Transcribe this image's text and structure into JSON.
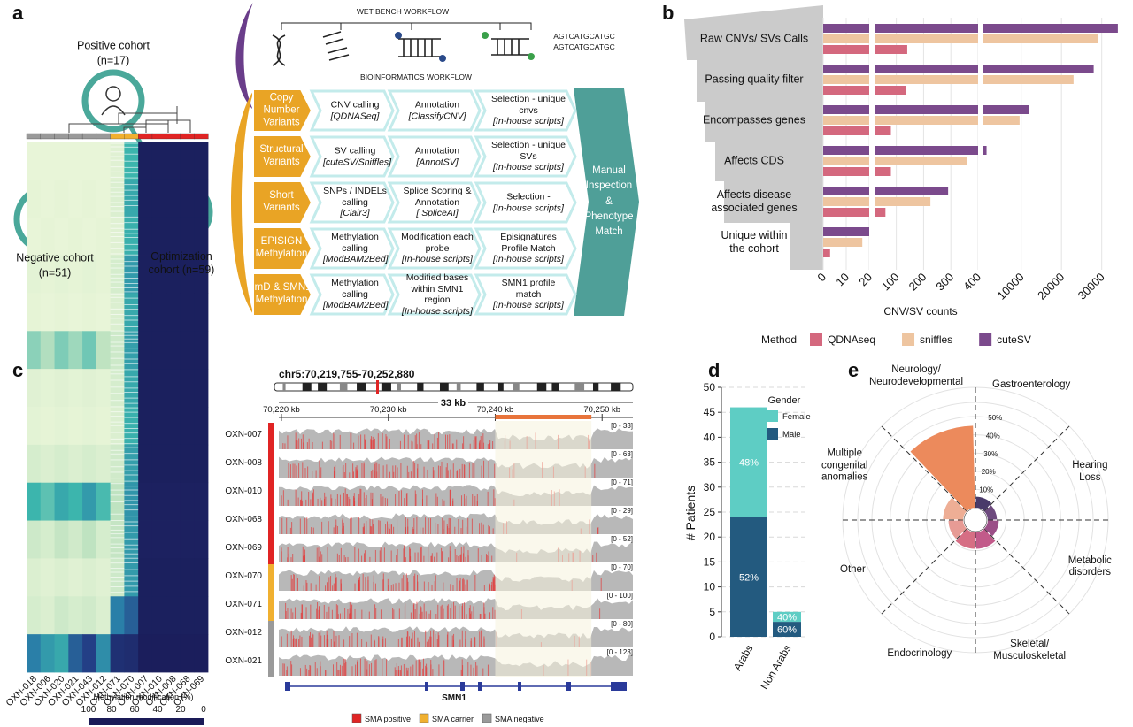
{
  "panel_labels": [
    "a",
    "b",
    "c",
    "d",
    "e"
  ],
  "workflow": {
    "cohorts": [
      {
        "name": "Positive cohort",
        "n": "(n=17)"
      },
      {
        "name": "Optimization cohort (n=59)"
      },
      {
        "name": "Negative cohort",
        "n": "(n=51)"
      }
    ],
    "wet_bench_title": "WET BENCH WORKFLOW",
    "sequences": [
      "AGTCATGCATGC",
      "AGTCATGCATGC"
    ],
    "bioinformatics_title": "BIOINFORMATICS WORKFLOW",
    "rows": [
      {
        "label": "Copy Number Variants",
        "steps": [
          {
            "text": "CNV calling",
            "tool": "[QDNASeq]"
          },
          {
            "text": "Annotation",
            "tool": "[ClassifyCNV]"
          },
          {
            "text": "Selection - unique cnvs",
            "tool": "[In-house scripts]"
          }
        ]
      },
      {
        "label": "Structural Variants",
        "steps": [
          {
            "text": "SV calling",
            "tool": "[cuteSV/Sniffles]"
          },
          {
            "text": "Annotation",
            "tool": "[AnnotSV]"
          },
          {
            "text": "Selection - unique SVs",
            "tool": "[In-house scripts]"
          }
        ]
      },
      {
        "label": "Short Variants",
        "steps": [
          {
            "text": "SNPs / INDELs calling",
            "tool": "[Clair3]"
          },
          {
            "text": "Splice Scoring & Annotation",
            "tool": "[ SpliceAI]"
          },
          {
            "text": "Selection -",
            "tool": "[In-house scripts]"
          }
        ]
      },
      {
        "label": "EPISIGN Methylation",
        "steps": [
          {
            "text": "Methylation calling",
            "tool": "[ModBAM2Bed]"
          },
          {
            "text": "Modification each probe",
            "tool": "[In-house scripts]"
          },
          {
            "text": "Episignatures Profile Match",
            "tool": "[In-house scripts]"
          }
        ]
      },
      {
        "label": "ImD & SMN1 Methylation",
        "steps": [
          {
            "text": "Methylation calling",
            "tool": "[ModBAM2Bed]"
          },
          {
            "text": "Modified bases within SMN1 region",
            "tool": "[In-house scripts]"
          },
          {
            "text": "SMN1 profile match",
            "tool": "[In-house scripts]"
          }
        ]
      }
    ],
    "final": "Manual Inspection & Phenotype Match"
  },
  "chart_data": [
    {
      "type": "broken_hbar",
      "categories": [
        "Raw CNVs/ SVs Calls",
        "Passing quality filter",
        "Encompasses genes",
        "Affects CDS",
        "Affects disease associated genes",
        "Unique within the cohort"
      ],
      "series": [
        {
          "name": "QDNAseq",
          "color": "#d4687e",
          "values": [
            140,
            135,
            80,
            80,
            60,
            3
          ]
        },
        {
          "name": "sniffles",
          "color": "#eec5a0",
          "values": [
            29000,
            23000,
            9600,
            360,
            225,
            17
          ]
        },
        {
          "name": "cuteSV",
          "color": "#7b4a8c",
          "values": [
            34000,
            28000,
            12000,
            1400,
            290,
            20
          ]
        }
      ],
      "xlabel": "CNV/SV counts",
      "legend_title": "Method",
      "xlim": [
        0,
        36000
      ],
      "x_breaks": [
        20,
        400
      ],
      "xticks": [
        0,
        10,
        20,
        100,
        200,
        300,
        400,
        10000,
        20000,
        30000
      ],
      "grid": true
    },
    {
      "type": "stacked_bar",
      "categories": [
        "Arabs",
        "Non Arabs"
      ],
      "series": [
        {
          "name": "Male",
          "color": "#235a7f",
          "values": [
            24,
            3
          ],
          "percent_labels": [
            "52%",
            "60%"
          ]
        },
        {
          "name": "Female",
          "color": "#5ecdc4",
          "values": [
            22,
            2
          ],
          "percent_labels": [
            "48%",
            "40%"
          ]
        }
      ],
      "ylabel": "# Patients",
      "legend_title": "Gender",
      "ylim": [
        0,
        50
      ],
      "yticks": [
        0,
        5,
        10,
        15,
        20,
        25,
        30,
        35,
        40,
        45,
        50
      ],
      "grid": true
    },
    {
      "type": "radial_bar",
      "categories": [
        "Gastroenterology",
        "Hearing Loss",
        "Metabolic disorders",
        "Skeletal/ Musculoskeletal",
        "Endocrinology",
        "Other",
        "Multiple congenital anomalies",
        "Neurology/ Neurodevelopmental"
      ],
      "values": [
        6,
        5,
        6,
        9,
        9,
        8,
        11,
        45
      ],
      "colors": [
        "#4a3a6a",
        "#6d4a7e",
        "#9b4f87",
        "#c25a8a",
        "#d66e84",
        "#e79b95",
        "#eeae95",
        "#ec8a5c"
      ],
      "rlim": [
        0,
        50
      ],
      "rticks": [
        {
          "value": 10,
          "label": "10%"
        },
        {
          "value": 20,
          "label": "20%"
        },
        {
          "value": 30,
          "label": "30%"
        },
        {
          "value": 40,
          "label": "40%"
        },
        {
          "value": 50,
          "label": "50%"
        }
      ]
    }
  ],
  "groups": [
    {
      "name": "SMA positive",
      "color": "#e02424"
    },
    {
      "name": "SMA carrier",
      "color": "#f0b030"
    },
    {
      "name": "SMA negative",
      "color": "#9a9a9a"
    }
  ],
  "heatmap": {
    "samples": [
      "OXN-018",
      "OXN-006",
      "OXN-020",
      "OXN-021",
      "OXN-043",
      "OXN-012",
      "OXN-071",
      "OXN-070",
      "OXN-007",
      "OXN-010",
      "OXN-008",
      "OXN-068",
      "OXN-069"
    ],
    "sample_colors": [
      "#9a9a9a",
      "#9a9a9a",
      "#9a9a9a",
      "#9a9a9a",
      "#9a9a9a",
      "#9a9a9a",
      "#f0b030",
      "#f0b030",
      "#e02424",
      "#e02424",
      "#e02424",
      "#e02424",
      "#e02424"
    ],
    "colorbar_label": "Methylation modification (%)",
    "colorbar_ticks": [
      100,
      80,
      60,
      40,
      20,
      0
    ],
    "values": [
      [
        95,
        95,
        95,
        95,
        95,
        95,
        92,
        60,
        3,
        3,
        3,
        3,
        3
      ],
      [
        94,
        95,
        94,
        95,
        94,
        95,
        90,
        55,
        3,
        3,
        3,
        3,
        3
      ],
      [
        95,
        94,
        95,
        94,
        95,
        94,
        92,
        58,
        3,
        3,
        3,
        3,
        3
      ],
      [
        93,
        94,
        93,
        94,
        93,
        94,
        88,
        50,
        3,
        3,
        3,
        3,
        3
      ],
      [
        94,
        95,
        94,
        95,
        94,
        95,
        90,
        55,
        3,
        3,
        3,
        3,
        3
      ],
      [
        72,
        78,
        70,
        75,
        68,
        80,
        85,
        52,
        3,
        3,
        3,
        3,
        3
      ],
      [
        92,
        93,
        92,
        93,
        92,
        93,
        88,
        55,
        3,
        3,
        3,
        3,
        3
      ],
      [
        93,
        94,
        93,
        94,
        93,
        94,
        90,
        58,
        3,
        3,
        3,
        3,
        3
      ],
      [
        88,
        90,
        88,
        90,
        88,
        90,
        86,
        52,
        3,
        3,
        3,
        3,
        3
      ],
      [
        60,
        65,
        55,
        60,
        50,
        62,
        80,
        48,
        4,
        4,
        4,
        4,
        4
      ],
      [
        85,
        88,
        82,
        86,
        80,
        88,
        82,
        50,
        4,
        4,
        4,
        4,
        4
      ],
      [
        90,
        92,
        90,
        92,
        90,
        92,
        85,
        50,
        3,
        3,
        3,
        3,
        3
      ],
      [
        88,
        90,
        85,
        88,
        86,
        90,
        40,
        30,
        3,
        3,
        3,
        3,
        3
      ],
      [
        40,
        50,
        55,
        30,
        20,
        45,
        12,
        10,
        2,
        2,
        2,
        2,
        2
      ]
    ]
  },
  "genome_browser": {
    "title": "chr5:70,219,755-70,252,880",
    "span_label": "33 kb",
    "xlim": [
      70219.755,
      70252.88
    ],
    "ticks": [
      {
        "value": 70220,
        "label": "70,220 kb"
      },
      {
        "value": 70230,
        "label": "70,230 kb"
      },
      {
        "value": 70240,
        "label": "70,240 kb"
      },
      {
        "value": 70250,
        "label": "70,250 kb"
      }
    ],
    "highlight": [
      70240,
      70249
    ],
    "tracks": [
      {
        "name": "OXN-007",
        "range": "[0 - 33]",
        "color": "#e02424"
      },
      {
        "name": "OXN-008",
        "range": "[0 - 63]",
        "color": "#e02424"
      },
      {
        "name": "OXN-010",
        "range": "[0 - 71]",
        "color": "#e02424"
      },
      {
        "name": "OXN-068",
        "range": "[0 - 29]",
        "color": "#e02424"
      },
      {
        "name": "OXN-069",
        "range": "[0 - 52]",
        "color": "#e02424"
      },
      {
        "name": "OXN-070",
        "range": "[0 - 70]",
        "color": "#f0b030"
      },
      {
        "name": "OXN-071",
        "range": "[0 - 100]",
        "color": "#f0b030"
      },
      {
        "name": "OXN-012",
        "range": "[0 - 80]",
        "color": "#9a9a9a"
      },
      {
        "name": "OXN-021",
        "range": "[0 - 123]",
        "color": "#9a9a9a"
      }
    ],
    "gene": "SMN1"
  }
}
